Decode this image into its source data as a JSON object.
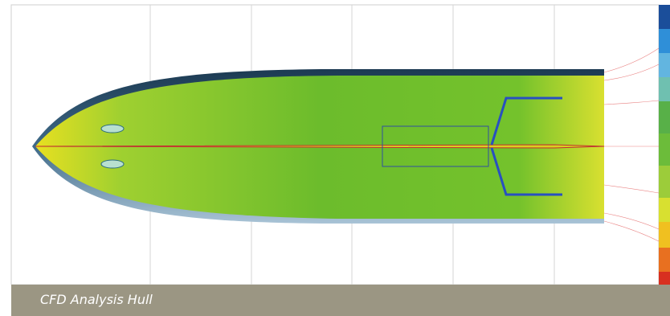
{
  "caption": "CFD Analysis Hull"
}
